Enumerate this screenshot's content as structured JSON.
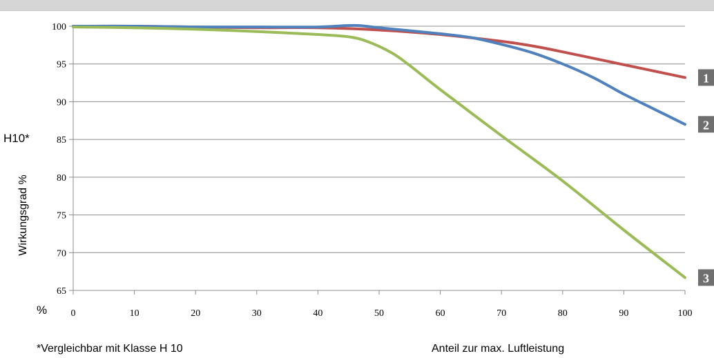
{
  "chart_data": {
    "type": "line",
    "ylabel": "Wirkungsgrad %",
    "ylim": [
      65,
      100
    ],
    "yticks": [
      "100",
      "95",
      "90",
      "85",
      "80",
      "75",
      "70",
      "65"
    ],
    "y_unit": "%",
    "y_marker": {
      "label": "H10*",
      "value": 85
    },
    "xlim": [
      0,
      100
    ],
    "xticks": [
      "0",
      "10",
      "20",
      "30",
      "40",
      "50",
      "60",
      "70",
      "80",
      "90",
      "100"
    ],
    "xlabel": "Anteil zur max. Luftleistung",
    "footnote": "*Vergleichbar mit Klasse H 10",
    "grid": "horizontal",
    "series": [
      {
        "badge": "1",
        "color": "#c0504d",
        "points": [
          [
            0,
            100
          ],
          [
            10,
            100
          ],
          [
            20,
            99.9
          ],
          [
            30,
            99.8
          ],
          [
            40,
            99.8
          ],
          [
            50,
            99.5
          ],
          [
            60,
            98.9
          ],
          [
            70,
            98.0
          ],
          [
            75,
            97.4
          ],
          [
            80,
            96.6
          ],
          [
            90,
            94.9
          ],
          [
            100,
            93.2
          ]
        ]
      },
      {
        "badge": "2",
        "color": "#4f81bd",
        "points": [
          [
            0,
            100
          ],
          [
            10,
            100
          ],
          [
            20,
            99.9
          ],
          [
            30,
            99.9
          ],
          [
            40,
            99.9
          ],
          [
            46,
            100.1
          ],
          [
            50,
            99.8
          ],
          [
            60,
            99.0
          ],
          [
            65,
            98.5
          ],
          [
            70,
            97.6
          ],
          [
            75,
            96.5
          ],
          [
            80,
            95.0
          ],
          [
            85,
            93.2
          ],
          [
            90,
            91.0
          ],
          [
            95,
            89.0
          ],
          [
            100,
            87.0
          ]
        ]
      },
      {
        "badge": "3",
        "color": "#9bbb59",
        "points": [
          [
            0,
            99.9
          ],
          [
            10,
            99.8
          ],
          [
            20,
            99.6
          ],
          [
            30,
            99.3
          ],
          [
            40,
            98.9
          ],
          [
            45,
            98.6
          ],
          [
            48,
            98.0
          ],
          [
            52,
            96.5
          ],
          [
            55,
            94.8
          ],
          [
            60,
            91.6
          ],
          [
            70,
            85.5
          ],
          [
            80,
            79.5
          ],
          [
            90,
            73.0
          ],
          [
            100,
            66.7
          ]
        ]
      }
    ]
  }
}
